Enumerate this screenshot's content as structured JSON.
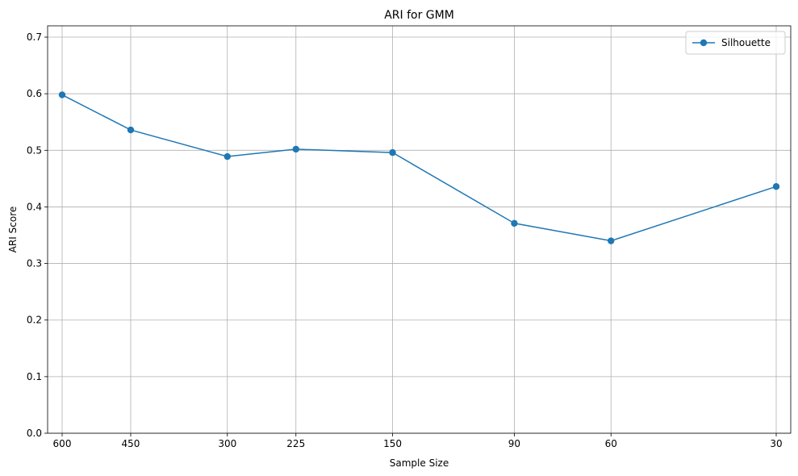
{
  "chart_data": {
    "type": "line",
    "title": "ARI for GMM",
    "xlabel": "Sample Size",
    "ylabel": "ARI Score",
    "x": [
      600,
      450,
      300,
      225,
      150,
      90,
      60,
      30
    ],
    "x_tick_labels": [
      "600",
      "450",
      "300",
      "225",
      "150",
      "90",
      "60",
      "30"
    ],
    "x_scale": "log",
    "x_inverted": true,
    "ylim": [
      0,
      0.72
    ],
    "y_ticks": [
      0.0,
      0.1,
      0.2,
      0.3,
      0.4,
      0.5,
      0.6,
      0.7
    ],
    "y_tick_labels": [
      "0.0",
      "0.1",
      "0.2",
      "0.3",
      "0.4",
      "0.5",
      "0.6",
      "0.7"
    ],
    "grid": true,
    "legend_position": "top-right",
    "series": [
      {
        "name": "Silhouette",
        "color": "#1f77b4",
        "marker": "circle",
        "values": [
          0.598,
          0.536,
          0.489,
          0.502,
          0.496,
          0.371,
          0.34,
          0.436
        ]
      }
    ]
  }
}
